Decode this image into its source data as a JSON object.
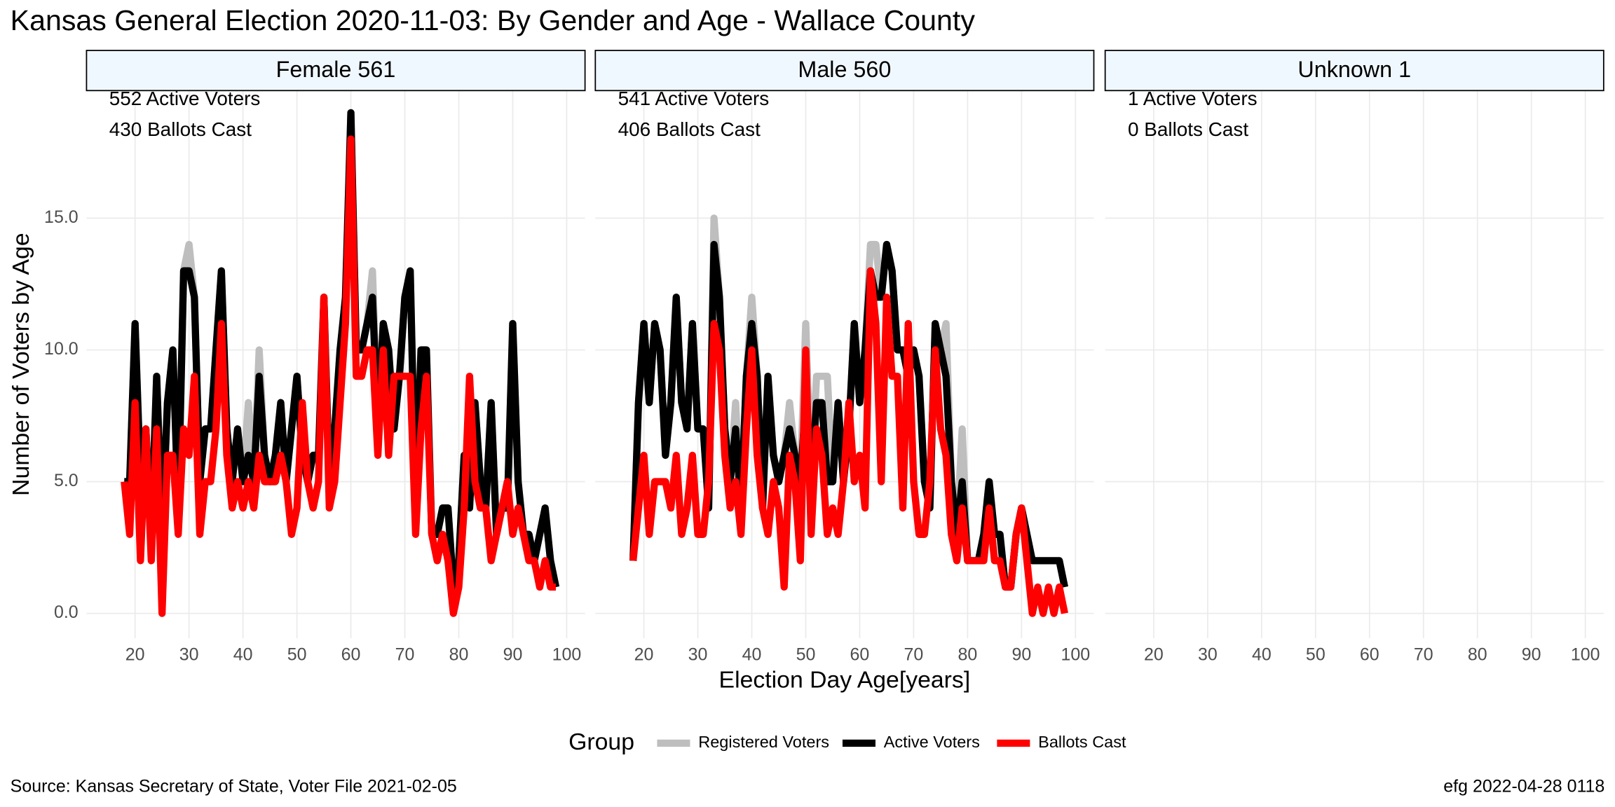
{
  "chart_data": {
    "type": "line",
    "title": "Kansas General Election 2020-11-03:  By Gender and Age - Wallace County",
    "xlabel": "Election Day Age[years]",
    "ylabel": "Number of Voters by Age",
    "legend_title": "Group",
    "groups": [
      {
        "name": "Registered Voters",
        "color": "#bebebe"
      },
      {
        "name": "Active Voters",
        "color": "#000000"
      },
      {
        "name": "Ballots Cast",
        "color": "#ff0000"
      }
    ],
    "source": "Source:  Kansas Secretary of State, Voter File  2021-02-05",
    "footer": "efg 2022-04-28 0118",
    "grid": true,
    "xlim": [
      11,
      103.4
    ],
    "xticks": [
      20,
      30,
      40,
      50,
      60,
      70,
      80,
      90,
      100
    ],
    "ylim": [
      -0.94,
      19.84
    ],
    "yticks": [
      {
        "value": 0,
        "label": "0.0"
      },
      {
        "value": 5,
        "label": "5.0"
      },
      {
        "value": 10,
        "label": "10.0"
      },
      {
        "value": 15,
        "label": "15.0"
      }
    ],
    "panels": [
      {
        "title": "Female 561",
        "annotations": [
          "552 Active Voters",
          "430 Ballots Cast"
        ],
        "x": [
          18,
          19,
          20,
          21,
          22,
          23,
          24,
          25,
          26,
          27,
          28,
          29,
          30,
          31,
          32,
          33,
          34,
          35,
          36,
          37,
          38,
          39,
          40,
          41,
          42,
          43,
          44,
          45,
          46,
          47,
          48,
          49,
          50,
          51,
          52,
          53,
          54,
          55,
          56,
          57,
          58,
          59,
          60,
          61,
          62,
          63,
          64,
          65,
          66,
          67,
          68,
          69,
          70,
          71,
          72,
          73,
          74,
          75,
          76,
          77,
          78,
          79,
          80,
          81,
          82,
          83,
          84,
          85,
          86,
          87,
          88,
          89,
          90,
          91,
          92,
          93,
          94,
          95,
          96,
          97,
          98
        ],
        "series": [
          {
            "values": [
              5,
              5,
              11,
              5,
              7,
              3,
              9,
              3,
              8,
              10,
              4,
              13,
              14,
              12,
              5,
              7,
              7,
              10,
              13,
              7,
              5,
              7,
              5,
              8,
              5,
              10,
              6,
              5,
              6,
              8,
              5,
              7,
              9,
              6,
              5,
              6,
              6,
              12,
              5,
              7,
              10,
              12,
              19,
              10,
              10,
              11,
              13,
              7,
              11,
              10,
              7,
              9,
              12,
              13,
              4,
              10,
              10,
              3,
              3,
              4,
              4,
              1,
              2,
              6,
              4,
              8,
              5,
              4,
              8,
              3,
              4,
              4,
              11,
              5,
              3,
              3,
              2,
              3,
              4,
              2,
              1
            ]
          },
          {
            "values": [
              5,
              5,
              11,
              5,
              7,
              3,
              9,
              3,
              8,
              10,
              4,
              13,
              13,
              12,
              5,
              7,
              7,
              10,
              13,
              7,
              5,
              7,
              5,
              6,
              5,
              9,
              6,
              5,
              6,
              8,
              5,
              7,
              9,
              6,
              5,
              6,
              6,
              12,
              5,
              7,
              10,
              12,
              19,
              10,
              10,
              11,
              12,
              7,
              11,
              10,
              7,
              9,
              12,
              13,
              4,
              10,
              10,
              3,
              3,
              4,
              4,
              1,
              2,
              6,
              4,
              8,
              5,
              4,
              8,
              3,
              4,
              4,
              11,
              5,
              3,
              3,
              2,
              3,
              4,
              2,
              1
            ]
          },
          {
            "values": [
              5,
              3,
              8,
              2,
              7,
              2,
              7,
              0,
              6,
              6,
              3,
              7,
              6,
              9,
              3,
              5,
              5,
              7,
              11,
              6,
              4,
              5,
              4,
              5,
              4,
              6,
              5,
              5,
              5,
              6,
              5,
              3,
              4,
              8,
              5,
              4,
              5,
              12,
              4,
              5,
              8,
              11,
              18,
              9,
              9,
              10,
              10,
              6,
              10,
              6,
              9,
              9,
              9,
              9,
              3,
              7,
              9,
              3,
              2,
              3,
              2,
              0,
              1,
              4,
              9,
              5,
              4,
              4,
              2,
              3,
              4,
              5,
              3,
              4,
              3,
              2,
              2,
              1,
              2,
              1,
              1
            ]
          }
        ]
      },
      {
        "title": "Male 560",
        "annotations": [
          "541 Active Voters",
          "406 Ballots Cast"
        ],
        "x": [
          18,
          19,
          20,
          21,
          22,
          23,
          24,
          25,
          26,
          27,
          28,
          29,
          30,
          31,
          32,
          33,
          34,
          35,
          36,
          37,
          38,
          39,
          40,
          41,
          42,
          43,
          44,
          45,
          46,
          47,
          48,
          49,
          50,
          51,
          52,
          53,
          54,
          55,
          56,
          57,
          58,
          59,
          60,
          61,
          62,
          63,
          64,
          65,
          66,
          67,
          68,
          69,
          70,
          71,
          72,
          73,
          74,
          75,
          76,
          77,
          78,
          79,
          80,
          81,
          82,
          83,
          84,
          85,
          86,
          87,
          88,
          89,
          90,
          91,
          92,
          93,
          94,
          95,
          96,
          97,
          98
        ],
        "series": [
          {
            "values": [
              2,
              8,
              11,
              8,
              11,
              10,
              6,
              8,
              12,
              8,
              7,
              11,
              7,
              7,
              4,
              15,
              12,
              7,
              5,
              8,
              4,
              9,
              12,
              9,
              4,
              9,
              6,
              5,
              6,
              8,
              6,
              5,
              11,
              5,
              9,
              9,
              9,
              5,
              8,
              5,
              7,
              11,
              8,
              10,
              14,
              14,
              12,
              14,
              13,
              10,
              10,
              9,
              10,
              9,
              5,
              4,
              11,
              10,
              11,
              5,
              3,
              7,
              2,
              2,
              2,
              3,
              5,
              3,
              3,
              1,
              1,
              3,
              4,
              3,
              2,
              2,
              2,
              2,
              2,
              2,
              1
            ]
          },
          {
            "values": [
              2,
              8,
              11,
              8,
              11,
              10,
              6,
              8,
              12,
              8,
              7,
              11,
              7,
              7,
              4,
              14,
              12,
              7,
              5,
              7,
              4,
              9,
              11,
              9,
              4,
              9,
              6,
              5,
              6,
              7,
              6,
              5,
              8,
              5,
              8,
              8,
              5,
              5,
              8,
              5,
              7,
              11,
              8,
              10,
              13,
              12,
              12,
              14,
              13,
              10,
              10,
              9,
              10,
              9,
              5,
              4,
              11,
              10,
              9,
              5,
              3,
              5,
              2,
              2,
              2,
              3,
              5,
              3,
              3,
              1,
              1,
              3,
              4,
              3,
              2,
              2,
              2,
              2,
              2,
              2,
              1
            ]
          },
          {
            "values": [
              2,
              4,
              6,
              3,
              5,
              5,
              5,
              4,
              6,
              3,
              4,
              6,
              3,
              3,
              5,
              11,
              10,
              6,
              4,
              5,
              3,
              7,
              10,
              6,
              4,
              3,
              5,
              4,
              1,
              6,
              5,
              2,
              10,
              3,
              7,
              6,
              3,
              4,
              3,
              5,
              8,
              5,
              6,
              4,
              13,
              11,
              5,
              12,
              9,
              9,
              4,
              11,
              5,
              3,
              3,
              5,
              10,
              7,
              6,
              3,
              2,
              4,
              2,
              2,
              2,
              2,
              4,
              2,
              2,
              1,
              1,
              3,
              4,
              2,
              0,
              1,
              0,
              1,
              0,
              1,
              0
            ]
          }
        ]
      },
      {
        "title": "Unknown 1",
        "annotations": [
          "1 Active Voters",
          "0 Ballots Cast"
        ],
        "x": [],
        "series": [
          {
            "values": []
          },
          {
            "values": []
          },
          {
            "values": []
          }
        ]
      }
    ]
  }
}
